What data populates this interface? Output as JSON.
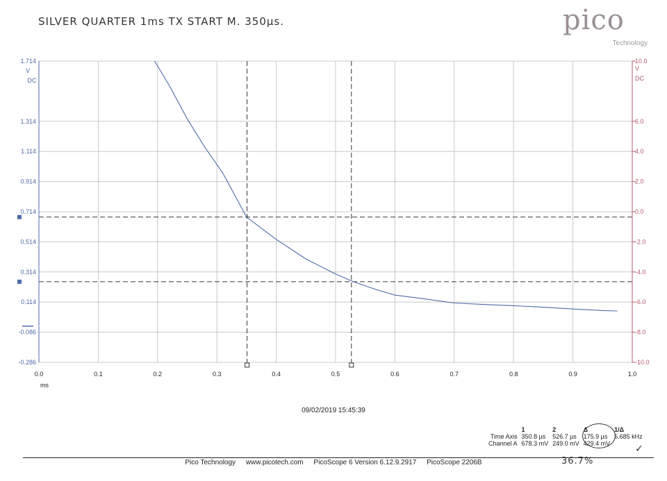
{
  "handwritten_note": "SILVER QUARTER  1ms TX   START M.  350µs.",
  "handwritten_percent": "36.7%",
  "logo": {
    "word": "pico",
    "tagline": "Technology"
  },
  "timestamp": "09/02/2019 15:45:39",
  "readout": {
    "col_headers": [
      "1",
      "2",
      "Δ",
      "1/Δ"
    ],
    "rows": [
      {
        "label": "Time Axis",
        "values": [
          "350.8 µs",
          "526.7 µs",
          "175.9 µs",
          "5.685 kHz"
        ]
      },
      {
        "label": "Channel A",
        "values": [
          "678.3 mV",
          "249.0 mV",
          "429.4 mV",
          ""
        ]
      }
    ]
  },
  "footer": {
    "company": "Pico Technology",
    "website": "www.picotech.com",
    "software": "PicoScope 6 Version 6.12.9.2917",
    "device": "PicoScope 2206B"
  },
  "colors": {
    "trace": "#4f6aa8",
    "left_axis": "#4f6aa8",
    "right_axis": "#b35a6a",
    "grid": "#c8c8c8",
    "rulers": "#333333"
  },
  "chart_data": {
    "type": "line",
    "x_ticks": [
      "0.0",
      "0.1",
      "0.2",
      "0.3",
      "0.4",
      "0.5",
      "0.6",
      "0.7",
      "0.8",
      "0.9",
      "1.0"
    ],
    "xlabel": "ms",
    "xlim": [
      0.0,
      1.0
    ],
    "y_left_ticks": [
      "1.714",
      "1.314",
      "1.114",
      "0.914",
      "0.714",
      "0.514",
      "0.314",
      "0.114",
      "-0.086",
      "-0.286"
    ],
    "y_left_unit": "V",
    "y_left_coupling": "DC",
    "ylim_left": [
      -0.286,
      1.714
    ],
    "y_right_ticks": [
      "10.0",
      "6.0",
      "4.0",
      "2.0",
      "0.0",
      "-2.0",
      "-4.0",
      "-6.0",
      "-8.0",
      "-10.0"
    ],
    "y_right_unit": "V",
    "y_right_coupling": "DC",
    "ylim_right": [
      -10.0,
      10.0
    ],
    "grid": true,
    "series": [
      {
        "x": [
          0.195,
          0.22,
          0.25,
          0.28,
          0.31,
          0.35,
          0.4,
          0.45,
          0.5,
          0.53,
          0.57,
          0.6,
          0.65,
          0.7,
          0.75,
          0.8,
          0.85,
          0.9,
          0.95,
          0.975
        ],
        "y": [
          1.714,
          1.55,
          1.33,
          1.14,
          0.97,
          0.678,
          0.53,
          0.4,
          0.3,
          0.249,
          0.195,
          0.16,
          0.135,
          0.108,
          0.098,
          0.09,
          0.08,
          0.068,
          0.058,
          0.055
        ]
      }
    ],
    "time_cursors": [
      0.3508,
      0.5267
    ],
    "voltage_cursors": [
      0.6783,
      0.249
    ]
  }
}
